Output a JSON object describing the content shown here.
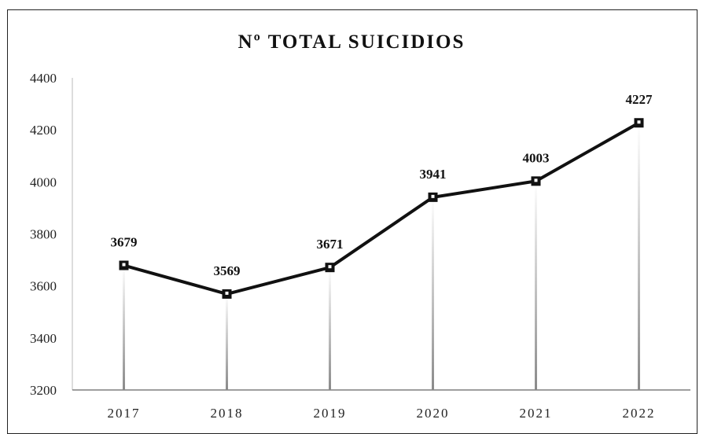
{
  "chart_data": {
    "type": "line",
    "title": "Nº TOTAL SUICIDIOS",
    "xlabel": "",
    "ylabel": "",
    "categories": [
      "2017",
      "2018",
      "2019",
      "2020",
      "2021",
      "2022"
    ],
    "series": [
      {
        "values": [
          3679,
          3569,
          3671,
          3941,
          4003,
          4227
        ]
      }
    ],
    "ylim": [
      3200,
      4400
    ],
    "yticks": [
      "3200",
      "3400",
      "3600",
      "3800",
      "4000",
      "4200",
      "4400"
    ],
    "data_labels": [
      "3679",
      "3569",
      "3671",
      "3941",
      "4003",
      "4227"
    ],
    "grid": false,
    "legend": "none",
    "colors": {
      "line": "#111111",
      "marker": "#111111",
      "drop_line": "#9a9a9a"
    }
  }
}
